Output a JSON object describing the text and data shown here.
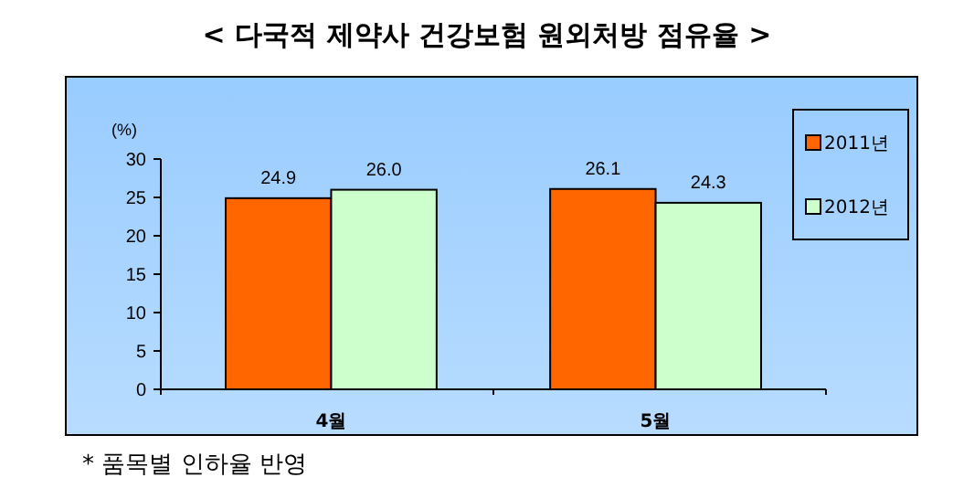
{
  "chart_data": {
    "type": "bar",
    "title": "< 다국적 제약사 건강보험 원외처방 점유율 >",
    "ylabel": "(%)",
    "categories": [
      "4월",
      "5월"
    ],
    "series": [
      {
        "name": "2011년",
        "color": "#ff6600",
        "values": [
          24.9,
          26.1
        ],
        "value_labels": [
          "24.9",
          "26.1"
        ]
      },
      {
        "name": "2012년",
        "color": "#ccffcc",
        "values": [
          26.0,
          24.3
        ],
        "value_labels": [
          "26.0",
          "24.3"
        ]
      }
    ],
    "ylim": [
      0,
      30
    ],
    "yticks": [
      0,
      5,
      10,
      15,
      20,
      25,
      30
    ],
    "grid": false,
    "legend": "right",
    "annotations": [
      "* 품목별 인하율 반영"
    ]
  }
}
